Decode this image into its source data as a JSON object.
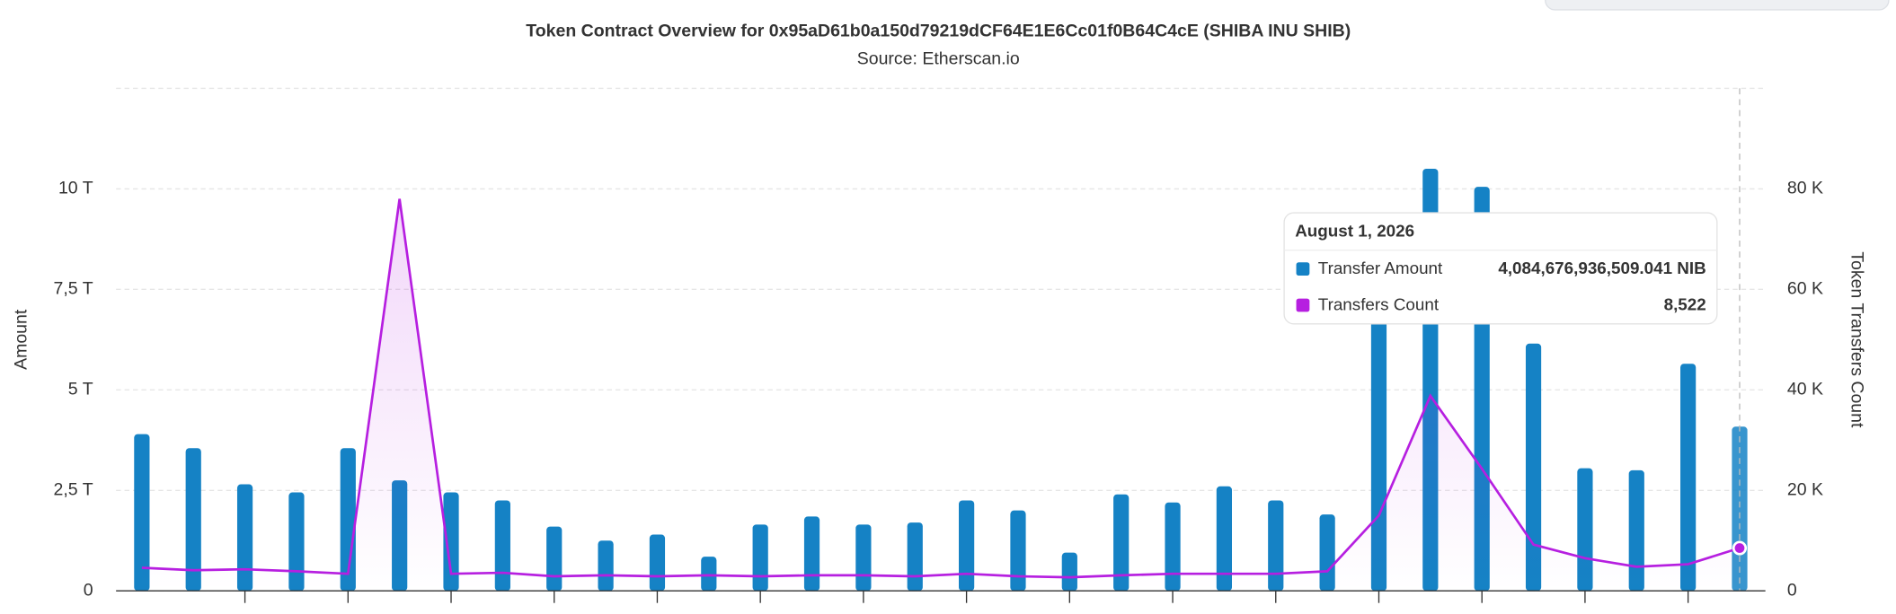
{
  "chart_data": {
    "type": "bar_line",
    "title": "Token Contract Overview for 0x95aD61b0a150d79219dCF64E1E6Cc01f0B64C4cE (SHIBA INU SHIB)",
    "subtitle": "Source: Etherscan.io",
    "y_label": "Amount",
    "y2_label": "Token Transfers Count",
    "categories": [
      null,
      null,
      null,
      null,
      null,
      null,
      null,
      null,
      null,
      null,
      null,
      null,
      null,
      null,
      null,
      null,
      null,
      null,
      null,
      null,
      null,
      null,
      null,
      null,
      null,
      null,
      null,
      null,
      null,
      null,
      null,
      null
    ],
    "series": [
      {
        "name": "Transfer Amount",
        "type": "bar",
        "color": "#1582c5",
        "values": [
          3900000000000,
          3550000000000,
          2650000000000,
          2450000000000,
          3550000000000,
          2750000000000,
          2450000000000,
          2250000000000,
          1600000000000,
          1250000000000,
          1400000000000,
          850000000000,
          1650000000000,
          1850000000000,
          1650000000000,
          1700000000000,
          2250000000000,
          2000000000000,
          950000000000,
          2400000000000,
          2200000000000,
          2600000000000,
          2250000000000,
          1900000000000,
          7000000000000,
          10500000000000,
          10050000000000,
          6150000000000,
          3050000000000,
          3000000000000,
          5650000000000,
          4084676936509.041
        ]
      },
      {
        "name": "Transfers Count",
        "type": "line",
        "axis": "y2",
        "color": "#b61fe0",
        "values": [
          4600,
          4100,
          4300,
          3900,
          3400,
          78000,
          3400,
          3600,
          2900,
          3100,
          2900,
          3100,
          2900,
          3100,
          3100,
          2900,
          3400,
          2900,
          2700,
          3100,
          3400,
          3400,
          3400,
          3900,
          15000,
          38800,
          24300,
          9200,
          6500,
          4800,
          5300,
          8522
        ]
      }
    ],
    "ylim": [
      0,
      12500000000000
    ],
    "yticks": [
      0,
      {
        "value": 2500000000000,
        "label": "2,5 T"
      },
      {
        "value": 5000000000000,
        "label": "5 T"
      },
      {
        "value": 7500000000000,
        "label": "7,5 T"
      },
      {
        "value": 10000000000000,
        "label": "10 T"
      }
    ],
    "y2lim": [
      0,
      100000
    ],
    "y2ticks": [
      0,
      {
        "value": 20000,
        "label": "20 K"
      },
      {
        "value": 40000,
        "label": "40 K"
      },
      {
        "value": 60000,
        "label": "60 K"
      },
      {
        "value": 80000,
        "label": "80 K"
      }
    ],
    "grid": true,
    "tooltip": {
      "title": "August 1, 2026",
      "values": [
        "4,084,676,936,509.041 NIB",
        "8,522"
      ]
    }
  }
}
